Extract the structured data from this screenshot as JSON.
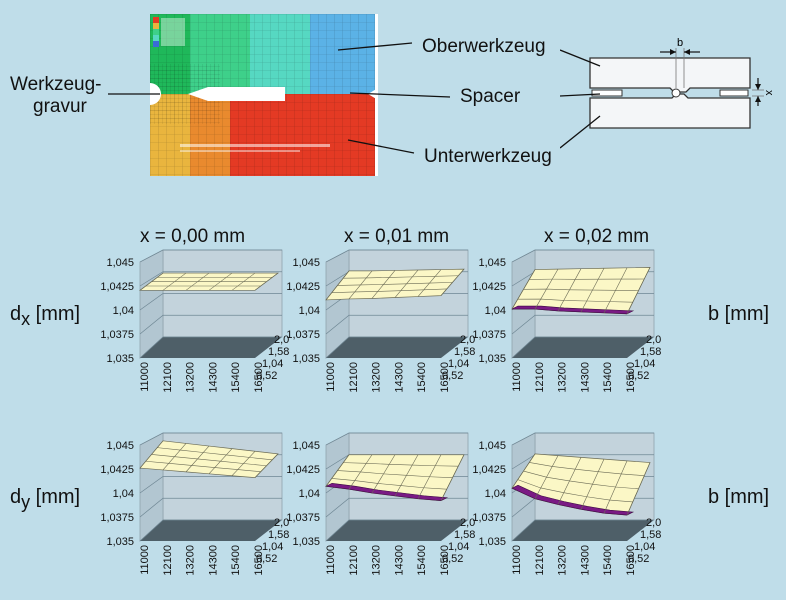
{
  "fem": {
    "label_gravur": [
      "Werkzeug-",
      "gravur"
    ],
    "label_ober": "Oberwerkzeug",
    "label_spacer": "Spacer",
    "label_unter": "Unterwerkzeug"
  },
  "schematic": {
    "dim_b": "b",
    "dim_x": "x"
  },
  "column_titles": [
    "x = 0,00 mm",
    "x = 0,01 mm",
    "x = 0,02 mm"
  ],
  "row_labels": {
    "dx_main": "d",
    "dx_sub": "x",
    "dx_unit": " [mm]",
    "dy_main": "d",
    "dy_sub": "y",
    "dy_unit": " [mm]",
    "b_top": "b [mm]",
    "b_bottom": "b [mm]"
  },
  "chart_data": {
    "type": "surface",
    "z_ticks": [
      "1,045",
      "1,0425",
      "1,04",
      "1,0375",
      "1,035"
    ],
    "x_ticks": [
      "11000",
      "12100",
      "13200",
      "14300",
      "15400",
      "16500"
    ],
    "y_ticks": [
      "2,0",
      "1,58",
      "1,04",
      "0,52"
    ],
    "zlim": [
      1.035,
      1.045
    ],
    "panels": [
      {
        "row": "dx",
        "x_mm": "0,00",
        "z_front": [
          1.04205,
          1.04205,
          1.04205,
          1.04205,
          1.04205,
          1.04205
        ],
        "z_back": [
          1.04235,
          1.04235,
          1.04235,
          1.04235,
          1.04235,
          1.04235
        ]
      },
      {
        "row": "dx",
        "x_mm": "0,01",
        "z_front": [
          1.04105,
          1.04115,
          1.0412,
          1.0413,
          1.0414,
          1.0415
        ],
        "z_back": [
          1.0426,
          1.0426,
          1.04265,
          1.0427,
          1.04275,
          1.0428
        ]
      },
      {
        "row": "dx",
        "x_mm": "0,02",
        "z_front": [
          1.0401,
          1.0401,
          1.0399,
          1.0398,
          1.0397,
          1.0396
        ],
        "z_back": [
          1.04275,
          1.0428,
          1.04285,
          1.0429,
          1.04295,
          1.043
        ]
      },
      {
        "row": "dy",
        "x_mm": "0,00",
        "z_front": [
          1.0426,
          1.0424,
          1.0422,
          1.042,
          1.0418,
          1.0416
        ],
        "z_back": [
          1.0441,
          1.0438,
          1.0435,
          1.0432,
          1.0429,
          1.0426
        ]
      },
      {
        "row": "dy",
        "x_mm": "0,01",
        "z_front": [
          1.0407,
          1.0404,
          1.04,
          1.0397,
          1.0394,
          1.0392
        ],
        "z_back": [
          1.0425,
          1.0425,
          1.0425,
          1.0425,
          1.0425,
          1.0425
        ]
      },
      {
        "row": "dy",
        "x_mm": "0,02",
        "z_front": [
          1.0405,
          1.0394,
          1.0388,
          1.0383,
          1.0379,
          1.0377
        ],
        "z_back": [
          1.0426,
          1.0424,
          1.0422,
          1.042,
          1.0418,
          1.0416
        ]
      }
    ]
  }
}
